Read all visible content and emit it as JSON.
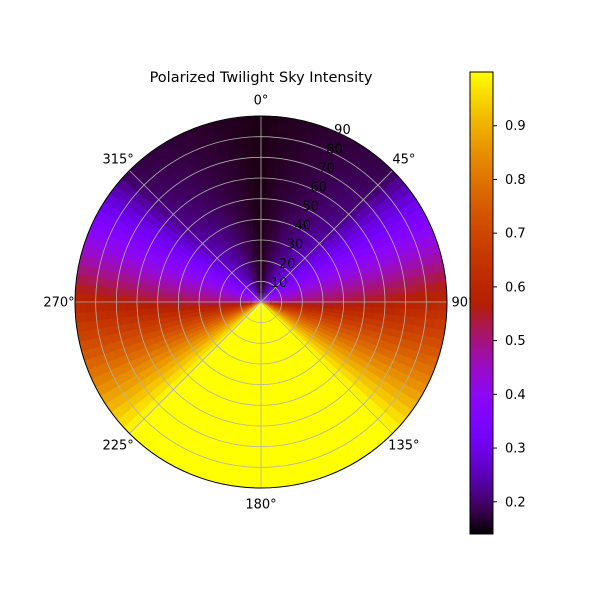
{
  "chart_data": {
    "type": "heatmap",
    "projection": "polar",
    "title": "Polarized Twilight Sky Intensity",
    "theta_zero_location": "N",
    "theta_direction": "clockwise",
    "theta_ticks": [
      0,
      45,
      90,
      135,
      180,
      225,
      270,
      315
    ],
    "theta_tick_labels": [
      "0°",
      "45°",
      "90°",
      "135°",
      "180°",
      "225°",
      "270°",
      "315°"
    ],
    "r_range": [
      0,
      90
    ],
    "r_ticks": [
      10,
      20,
      30,
      40,
      50,
      60,
      70,
      80,
      90
    ],
    "r_tick_labels": [
      "10",
      "20",
      "30",
      "40",
      "50",
      "60",
      "70",
      "80",
      "90"
    ],
    "r_label_angle_deg": 22.5,
    "grid": true,
    "value_range": [
      0.14,
      1.0
    ],
    "colormap": "gnuplot",
    "colorbar": {
      "location": "right",
      "ticks": [
        0.2,
        0.3,
        0.4,
        0.5,
        0.6,
        0.7,
        0.8,
        0.9
      ],
      "tick_labels": [
        "0.2",
        "0.3",
        "0.4",
        "0.5",
        "0.6",
        "0.7",
        "0.8",
        "0.9"
      ]
    },
    "field_samples": {
      "description_axes": [
        "azimuth_deg",
        "zenith_deg"
      ],
      "azimuth_deg": [
        0,
        45,
        90,
        135,
        180,
        225,
        270,
        315
      ],
      "zenith_deg": [
        10,
        50,
        90
      ],
      "values": [
        [
          0.15,
          0.15,
          0.15
        ],
        [
          0.3,
          0.22,
          0.18
        ],
        [
          0.5,
          0.55,
          0.6
        ],
        [
          1.0,
          1.0,
          1.0
        ],
        [
          1.0,
          1.0,
          1.0
        ],
        [
          1.0,
          1.0,
          1.0
        ],
        [
          0.5,
          0.55,
          0.6
        ],
        [
          0.3,
          0.22,
          0.18
        ]
      ]
    }
  }
}
